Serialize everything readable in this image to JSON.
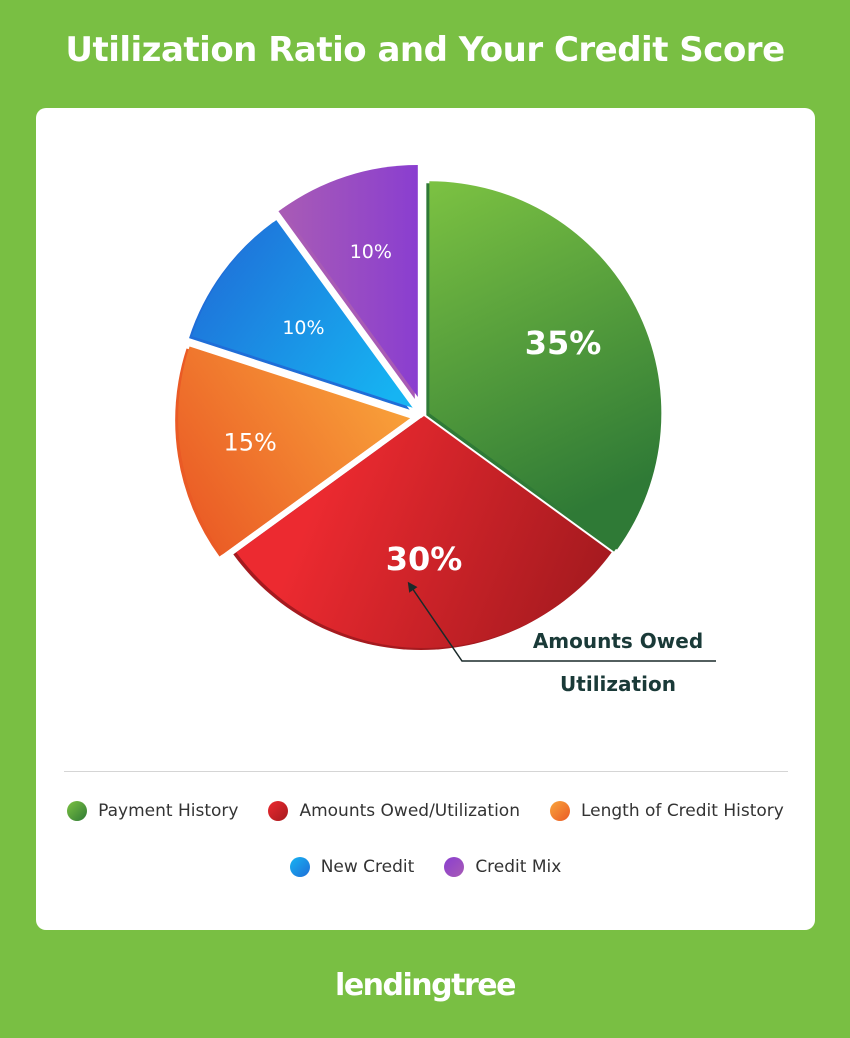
{
  "title": "Utilization Ratio and Your Credit Score",
  "chart_data": {
    "type": "pie",
    "title": "Utilization Ratio and Your Credit Score",
    "slices": [
      {
        "label": "Payment History",
        "value": 35,
        "text": "35%",
        "color": "#4a9a3c",
        "color_light": "#7cc242",
        "color_dark": "#2f7a36"
      },
      {
        "label": "Amounts Owed/Utilization",
        "value": 30,
        "text": "30%",
        "color": "#d7202a",
        "color_light": "#ec2a30",
        "color_dark": "#a51a1f"
      },
      {
        "label": "Length of Credit History",
        "value": 15,
        "text": "15%",
        "color": "#f47a2d",
        "color_light": "#f9a53b",
        "color_dark": "#ea5a25"
      },
      {
        "label": "New Credit",
        "value": 10,
        "text": "10%",
        "color": "#1e8fe8",
        "color_light": "#16b4f2",
        "color_dark": "#1f6ed8"
      },
      {
        "label": "Credit Mix",
        "value": 10,
        "text": "10%",
        "color": "#9b45c6",
        "color_light": "#8a3ed0",
        "color_dark": "#a85bb5"
      }
    ],
    "callout": {
      "line1": "Amounts Owed",
      "line2": "Utilization"
    },
    "legend_position": "bottom"
  },
  "brand": {
    "logo_text": "lendingtree"
  }
}
